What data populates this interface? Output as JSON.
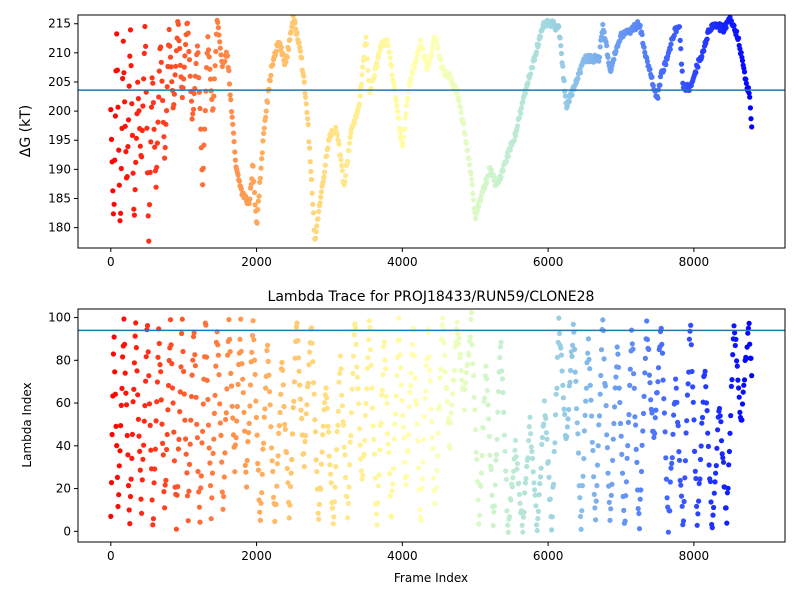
{
  "chart_data": [
    {
      "type": "scatter",
      "title": "",
      "xlabel": "",
      "ylabel": "ΔG (kT)",
      "xlim": [
        -450,
        9250
      ],
      "ylim": [
        176.5,
        216.5
      ],
      "xticks": [
        "0",
        "2000",
        "4000",
        "6000",
        "8000"
      ],
      "xtick_values": [
        0,
        2000,
        4000,
        6000,
        8000
      ],
      "yticks": [
        "180",
        "185",
        "190",
        "195",
        "200",
        "205",
        "210",
        "215"
      ],
      "ytick_values": [
        180,
        185,
        190,
        195,
        200,
        205,
        210,
        215
      ],
      "colormap": "rainbow (red at frame 0 → violet at end)",
      "hline": 203.6,
      "hline_color": "#1f77b4",
      "series": [
        {
          "kind": "trajectory",
          "x_range": [
            0,
            8800
          ],
          "keypoints": [
            [
              0,
              200
            ],
            [
              40,
              180
            ],
            [
              80,
              214
            ],
            [
              130,
              178
            ],
            [
              170,
              212
            ],
            [
              220,
              186
            ],
            [
              270,
              214
            ],
            [
              320,
              180
            ],
            [
              370,
              205
            ],
            [
              420,
              190
            ],
            [
              470,
              216
            ],
            [
              520,
              177
            ],
            [
              570,
              208
            ],
            [
              620,
              186
            ],
            [
              680,
              213
            ],
            [
              740,
              191
            ],
            [
              800,
              214
            ],
            [
              860,
              200
            ],
            [
              920,
              216
            ],
            [
              980,
              202
            ],
            [
              1050,
              216
            ],
            [
              1120,
              198
            ],
            [
              1190,
              212
            ],
            [
              1260,
              187
            ],
            [
              1330,
              213
            ],
            [
              1400,
              199
            ],
            [
              1460,
              216
            ],
            [
              1520,
              208
            ],
            [
              1600,
              210
            ],
            [
              1650,
              201
            ],
            [
              1720,
              190
            ],
            [
              1800,
              186
            ],
            [
              1900,
              184
            ],
            [
              1950,
              191
            ],
            [
              2000,
              180
            ],
            [
              2100,
              197
            ],
            [
              2200,
              207
            ],
            [
              2300,
              212
            ],
            [
              2400,
              208
            ],
            [
              2500,
              216
            ],
            [
              2600,
              211
            ],
            [
              2700,
              199
            ],
            [
              2800,
              178
            ],
            [
              2900,
              187
            ],
            [
              3000,
              196
            ],
            [
              3100,
              197
            ],
            [
              3200,
              187
            ],
            [
              3300,
              197
            ],
            [
              3400,
              200
            ],
            [
              3500,
              213
            ],
            [
              3550,
              203
            ],
            [
              3650,
              208
            ],
            [
              3700,
              211
            ],
            [
              3800,
              212
            ],
            [
              3900,
              203
            ],
            [
              4000,
              194
            ],
            [
              4100,
              205
            ],
            [
              4250,
              212
            ],
            [
              4350,
              207
            ],
            [
              4450,
              213
            ],
            [
              4550,
              207
            ],
            [
              4650,
              206
            ],
            [
              4750,
              203
            ],
            [
              4850,
              197
            ],
            [
              4950,
              188
            ],
            [
              5000,
              182
            ],
            [
              5100,
              186
            ],
            [
              5200,
              190
            ],
            [
              5300,
              187
            ],
            [
              5400,
              191
            ],
            [
              5550,
              196
            ],
            [
              5700,
              204
            ],
            [
              5850,
              211
            ],
            [
              5950,
              215
            ],
            [
              6050,
              215
            ],
            [
              6150,
              214
            ],
            [
              6250,
              201
            ],
            [
              6350,
              204
            ],
            [
              6500,
              209
            ],
            [
              6700,
              209
            ],
            [
              6750,
              215
            ],
            [
              6850,
              207
            ],
            [
              7000,
              213
            ],
            [
              7150,
              214
            ],
            [
              7250,
              215
            ],
            [
              7350,
              209
            ],
            [
              7500,
              202
            ],
            [
              7550,
              206
            ],
            [
              7650,
              210
            ],
            [
              7750,
              214
            ],
            [
              7800,
              215
            ],
            [
              7850,
              204
            ],
            [
              7950,
              204
            ],
            [
              8050,
              208
            ],
            [
              8150,
              211
            ],
            [
              8200,
              214
            ],
            [
              8300,
              215
            ],
            [
              8400,
              214
            ],
            [
              8500,
              216
            ],
            [
              8600,
              213
            ],
            [
              8700,
              206
            ],
            [
              8760,
              203
            ],
            [
              8800,
              196
            ]
          ]
        }
      ]
    },
    {
      "type": "scatter",
      "title": "Lambda Trace for PROJ18433/RUN59/CLONE28",
      "xlabel": "Frame Index",
      "ylabel": "Lambda Index",
      "xlim": [
        -450,
        9250
      ],
      "ylim": [
        -5,
        104
      ],
      "xticks": [
        "0",
        "2000",
        "4000",
        "6000",
        "8000"
      ],
      "xtick_values": [
        0,
        2000,
        4000,
        6000,
        8000
      ],
      "yticks": [
        "0",
        "20",
        "40",
        "60",
        "80",
        "100"
      ],
      "ytick_values": [
        0,
        20,
        40,
        60,
        80,
        100
      ],
      "colormap": "rainbow (red at frame 0 → violet at end)",
      "hline": 94,
      "hline_color": "#1f77b4",
      "series": [
        {
          "kind": "trajectory",
          "x_range": [
            0,
            8800
          ],
          "keypoints": [
            [
              0,
              5
            ],
            [
              40,
              95
            ],
            [
              100,
              10
            ],
            [
              180,
              99
            ],
            [
              260,
              3
            ],
            [
              340,
              97
            ],
            [
              420,
              8
            ],
            [
              500,
              99
            ],
            [
              580,
              2
            ],
            [
              660,
              98
            ],
            [
              740,
              10
            ],
            [
              820,
              99
            ],
            [
              900,
              3
            ],
            [
              980,
              99
            ],
            [
              1060,
              5
            ],
            [
              1140,
              99
            ],
            [
              1220,
              2
            ],
            [
              1300,
              99
            ],
            [
              1380,
              6
            ],
            [
              1460,
              99
            ],
            [
              1540,
              10
            ],
            [
              1620,
              99
            ],
            [
              1700,
              30
            ],
            [
              1780,
              99
            ],
            [
              1860,
              20
            ],
            [
              1950,
              99
            ],
            [
              2050,
              2
            ],
            [
              2150,
              90
            ],
            [
              2250,
              2
            ],
            [
              2350,
              80
            ],
            [
              2450,
              5
            ],
            [
              2550,
              99
            ],
            [
              2650,
              30
            ],
            [
              2750,
              99
            ],
            [
              2850,
              3
            ],
            [
              2950,
              70
            ],
            [
              3050,
              2
            ],
            [
              3150,
              80
            ],
            [
              3250,
              5
            ],
            [
              3350,
              99
            ],
            [
              3450,
              20
            ],
            [
              3550,
              99
            ],
            [
              3650,
              3
            ],
            [
              3750,
              90
            ],
            [
              3850,
              5
            ],
            [
              3950,
              99
            ],
            [
              4050,
              20
            ],
            [
              4150,
              99
            ],
            [
              4250,
              2
            ],
            [
              4350,
              95
            ],
            [
              4450,
              10
            ],
            [
              4550,
              99
            ],
            [
              4650,
              40
            ],
            [
              4750,
              99
            ],
            [
              4850,
              60
            ],
            [
              4950,
              99
            ],
            [
              5050,
              5
            ],
            [
              5150,
              80
            ],
            [
              5250,
              2
            ],
            [
              5350,
              90
            ],
            [
              5450,
              1
            ],
            [
              5550,
              40
            ],
            [
              5650,
              1
            ],
            [
              5750,
              50
            ],
            [
              5850,
              1
            ],
            [
              5950,
              60
            ],
            [
              6050,
              1
            ],
            [
              6150,
              99
            ],
            [
              6250,
              40
            ],
            [
              6350,
              99
            ],
            [
              6450,
              1
            ],
            [
              6550,
              90
            ],
            [
              6650,
              5
            ],
            [
              6750,
              99
            ],
            [
              6850,
              2
            ],
            [
              6950,
              90
            ],
            [
              7050,
              1
            ],
            [
              7150,
              95
            ],
            [
              7250,
              1
            ],
            [
              7350,
              99
            ],
            [
              7450,
              40
            ],
            [
              7550,
              99
            ],
            [
              7650,
              1
            ],
            [
              7750,
              70
            ],
            [
              7850,
              1
            ],
            [
              7950,
              99
            ],
            [
              8050,
              1
            ],
            [
              8150,
              80
            ],
            [
              8250,
              1
            ],
            [
              8350,
              60
            ],
            [
              8450,
              5
            ],
            [
              8550,
              99
            ],
            [
              8650,
              50
            ],
            [
              8750,
              99
            ],
            [
              8800,
              70
            ]
          ]
        }
      ]
    }
  ]
}
